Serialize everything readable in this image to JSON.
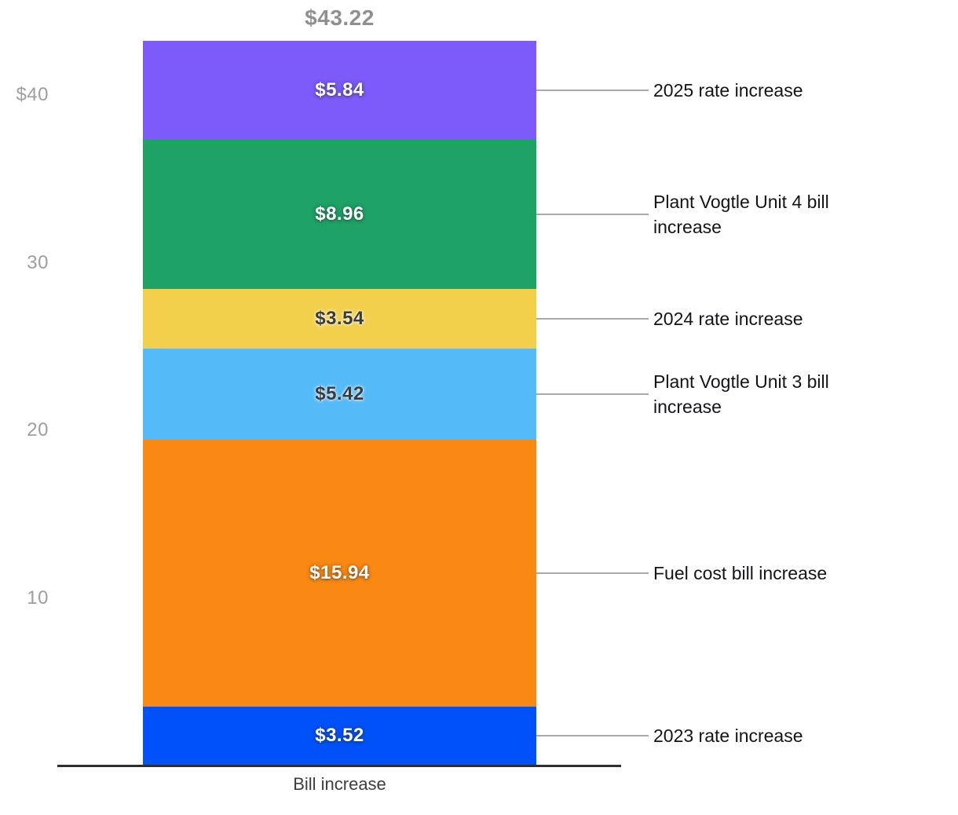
{
  "chart_data": {
    "type": "bar",
    "variant": "stacked-single-column",
    "total_label": "$43.22",
    "total_value": 43.22,
    "xlabel": "Bill increase",
    "categories": [
      "Bill increase"
    ],
    "ylim": [
      0,
      43.22
    ],
    "grid": false,
    "legend_position": "right-annotations",
    "y_ticks": [
      {
        "label": "$40",
        "value": 40
      },
      {
        "label": "30",
        "value": 30
      },
      {
        "label": "20",
        "value": 20
      },
      {
        "label": "10",
        "value": 10
      }
    ],
    "segments_bottom_to_top": [
      {
        "name": "2023 rate increase",
        "value": 3.52,
        "value_label": "$3.52",
        "color": "#0051F7",
        "label_style": "light"
      },
      {
        "name": "Fuel cost bill increase",
        "value": 15.94,
        "value_label": "$15.94",
        "color": "#F98912",
        "label_style": "light"
      },
      {
        "name": "Plant Vogtle Unit 3 bill increase",
        "value": 5.42,
        "value_label": "$5.42",
        "color": "#55BAF8",
        "label_style": "dark"
      },
      {
        "name": "2024 rate increase",
        "value": 3.54,
        "value_label": "$3.54",
        "color": "#F2D04C",
        "label_style": "dark"
      },
      {
        "name": "Plant Vogtle Unit 4 bill increase",
        "value": 8.96,
        "value_label": "$8.96",
        "color": "#1EA266",
        "label_style": "light"
      },
      {
        "name": "2025 rate increase",
        "value": 5.84,
        "value_label": "$5.84",
        "color": "#7C5BFA",
        "label_style": "light"
      }
    ],
    "colors": {
      "total_label": "#909090",
      "tick_label": "#9e9e9e",
      "connector_line": "#a9a9a9",
      "axis_line": "#2e2e2e",
      "annotation_text": "#121418",
      "x_label": "#3d3d3d"
    }
  }
}
